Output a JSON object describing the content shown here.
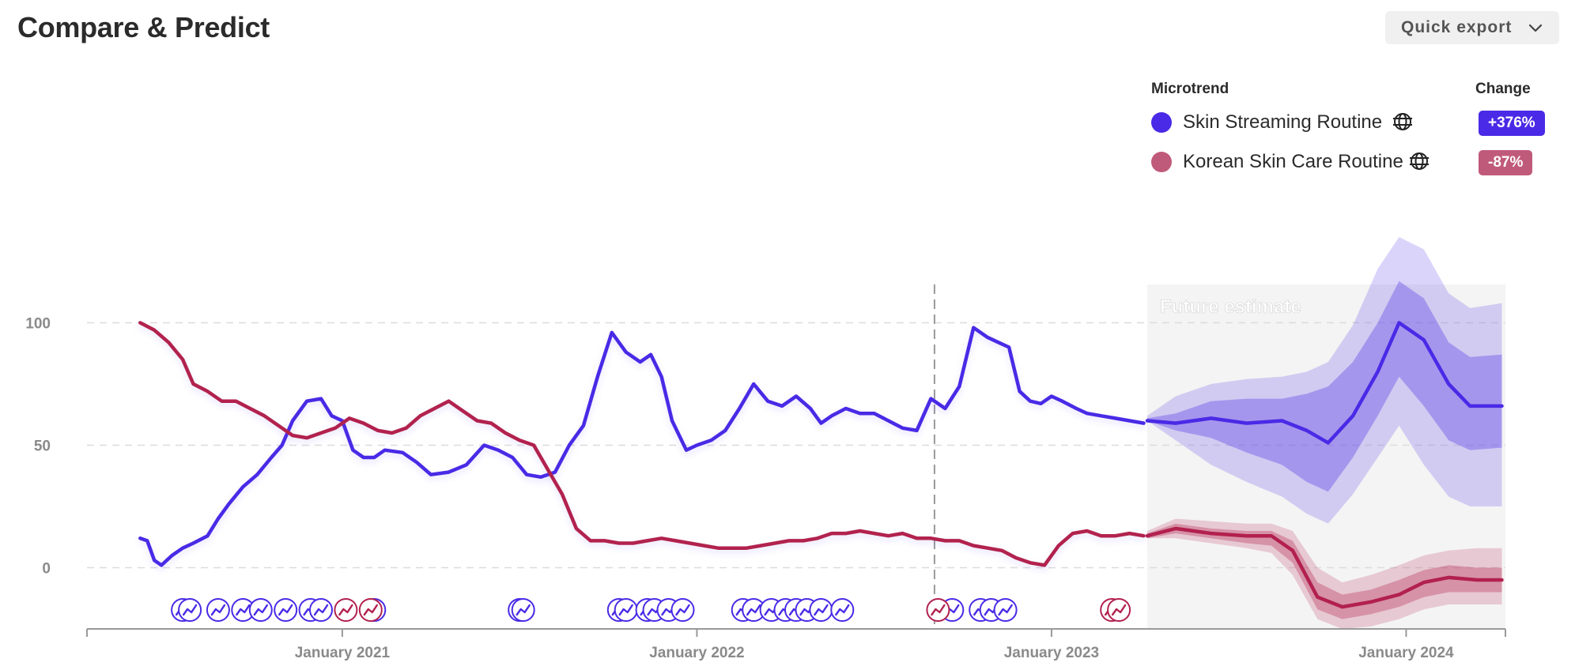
{
  "header": {
    "title": "Compare & Predict",
    "export_label": "Quick export"
  },
  "legend": {
    "col_trend": "Microtrend",
    "col_change": "Change",
    "items": [
      {
        "name": "Skin Streaming Routine",
        "change": "+376%",
        "color": "#4a2ae6"
      },
      {
        "name": "Korean Skin Care Routine",
        "change": "-87%",
        "color": "#c05a7a"
      }
    ]
  },
  "chart_data": {
    "type": "line",
    "title": "",
    "future_label": "Future estimate",
    "x_tick_labels": [
      "January 2021",
      "January 2022",
      "January 2023",
      "January 2024"
    ],
    "x_ticks": [
      2021.0,
      2022.0,
      2023.0,
      2024.0
    ],
    "xlim": [
      2020.28,
      2024.28
    ],
    "y_ticks": [
      0,
      50,
      100
    ],
    "ylim": [
      -25,
      135
    ],
    "grid": true,
    "today_x": 2022.67,
    "forecast_start": 2023.27,
    "series": [
      {
        "name": "Skin Streaming Routine",
        "color": "#4a2ae6",
        "x": [
          2020.43,
          2020.45,
          2020.47,
          2020.49,
          2020.52,
          2020.55,
          2020.58,
          2020.62,
          2020.65,
          2020.68,
          2020.72,
          2020.76,
          2020.8,
          2020.83,
          2020.86,
          2020.9,
          2020.94,
          2020.97,
          2021.0,
          2021.03,
          2021.06,
          2021.09,
          2021.12,
          2021.17,
          2021.21,
          2021.25,
          2021.3,
          2021.35,
          2021.4,
          2021.44,
          2021.48,
          2021.52,
          2021.56,
          2021.6,
          2021.64,
          2021.68,
          2021.72,
          2021.76,
          2021.8,
          2021.84,
          2021.87,
          2021.9,
          2021.93,
          2021.97,
          2022.0,
          2022.04,
          2022.08,
          2022.12,
          2022.16,
          2022.2,
          2022.24,
          2022.28,
          2022.32,
          2022.35,
          2022.38,
          2022.42,
          2022.46,
          2022.5,
          2022.54,
          2022.58,
          2022.62,
          2022.66,
          2022.7,
          2022.74,
          2022.78,
          2022.82,
          2022.85,
          2022.88,
          2022.91,
          2022.94,
          2022.97,
          2023.0,
          2023.03,
          2023.07,
          2023.1,
          2023.14,
          2023.18,
          2023.22,
          2023.26
        ],
        "y": [
          12,
          11,
          3,
          1,
          5,
          8,
          10,
          13,
          20,
          26,
          33,
          38,
          45,
          50,
          60,
          68,
          69,
          62,
          60,
          48,
          45,
          45,
          48,
          47,
          43,
          38,
          39,
          42,
          50,
          48,
          45,
          38,
          37,
          39,
          50,
          58,
          78,
          96,
          88,
          84,
          87,
          78,
          60,
          48,
          50,
          52,
          56,
          65,
          75,
          68,
          66,
          70,
          65,
          59,
          62,
          65,
          63,
          63,
          60,
          57,
          56,
          69,
          65,
          74,
          98,
          94,
          92,
          90,
          72,
          68,
          67,
          70,
          68,
          65,
          63,
          62,
          61,
          60,
          59
        ]
      },
      {
        "name": "Korean Skin Care Routine",
        "color": "#b2204e",
        "x": [
          2020.43,
          2020.47,
          2020.51,
          2020.55,
          2020.58,
          2020.62,
          2020.66,
          2020.7,
          2020.74,
          2020.78,
          2020.82,
          2020.86,
          2020.9,
          2020.94,
          2020.98,
          2021.02,
          2021.06,
          2021.1,
          2021.14,
          2021.18,
          2021.22,
          2021.26,
          2021.3,
          2021.34,
          2021.38,
          2021.42,
          2021.46,
          2021.5,
          2021.54,
          2021.58,
          2021.62,
          2021.66,
          2021.7,
          2021.74,
          2021.78,
          2021.82,
          2021.86,
          2021.9,
          2021.94,
          2021.98,
          2022.02,
          2022.06,
          2022.1,
          2022.14,
          2022.18,
          2022.22,
          2022.26,
          2022.3,
          2022.34,
          2022.38,
          2022.42,
          2022.46,
          2022.5,
          2022.54,
          2022.58,
          2022.62,
          2022.66,
          2022.7,
          2022.74,
          2022.78,
          2022.82,
          2022.86,
          2022.9,
          2022.94,
          2022.98,
          2023.02,
          2023.06,
          2023.1,
          2023.14,
          2023.18,
          2023.22,
          2023.26
        ],
        "y": [
          100,
          97,
          92,
          85,
          75,
          72,
          68,
          68,
          65,
          62,
          58,
          54,
          53,
          55,
          57,
          61,
          59,
          56,
          55,
          57,
          62,
          65,
          68,
          64,
          60,
          59,
          55,
          52,
          50,
          40,
          30,
          16,
          11,
          11,
          10,
          10,
          11,
          12,
          11,
          10,
          9,
          8,
          8,
          8,
          9,
          10,
          11,
          11,
          12,
          14,
          14,
          15,
          14,
          13,
          14,
          12,
          12,
          11,
          11,
          9,
          8,
          7,
          4,
          2,
          1,
          9,
          14,
          15,
          13,
          13,
          14,
          13
        ]
      }
    ],
    "forecast": [
      {
        "name": "Skin Streaming Routine",
        "color": "#4a2ae6",
        "x": [
          2023.27,
          2023.35,
          2023.45,
          2023.55,
          2023.65,
          2023.72,
          2023.78,
          2023.85,
          2023.92,
          2023.98,
          2024.05,
          2024.12,
          2024.18,
          2024.27
        ],
        "y": [
          60,
          59,
          61,
          59,
          60,
          56,
          51,
          62,
          80,
          100,
          93,
          75,
          66,
          66
        ],
        "inner_lo": [
          60,
          56,
          53,
          47,
          42,
          35,
          31,
          45,
          62,
          78,
          66,
          52,
          48,
          49
        ],
        "inner_hi": [
          61,
          63,
          68,
          69,
          69,
          71,
          74,
          84,
          100,
          117,
          110,
          92,
          86,
          87
        ],
        "outer_lo": [
          60,
          52,
          42,
          35,
          29,
          22,
          18,
          30,
          45,
          58,
          42,
          29,
          25,
          25
        ],
        "outer_hi": [
          62,
          70,
          75,
          77,
          78,
          80,
          84,
          99,
          122,
          135,
          130,
          112,
          106,
          108
        ]
      },
      {
        "name": "Korean Skin Care Routine",
        "color": "#b2204e",
        "x": [
          2023.27,
          2023.35,
          2023.45,
          2023.55,
          2023.62,
          2023.68,
          2023.75,
          2023.82,
          2023.9,
          2023.98,
          2024.05,
          2024.12,
          2024.2,
          2024.27
        ],
        "y": [
          13,
          16,
          14,
          13,
          13,
          7,
          -12,
          -16,
          -14,
          -11,
          -6,
          -4,
          -5,
          -5
        ],
        "inner_lo": [
          12,
          14,
          12,
          10,
          9,
          2,
          -17,
          -21,
          -19,
          -16,
          -12,
          -10,
          -10,
          -10
        ],
        "inner_hi": [
          14,
          18,
          16,
          15,
          15,
          11,
          -6,
          -11,
          -9,
          -5,
          -1,
          1,
          0,
          0
        ],
        "outer_lo": [
          12,
          12,
          10,
          8,
          6,
          -3,
          -21,
          -25,
          -24,
          -21,
          -17,
          -15,
          -15,
          -15
        ],
        "outer_hi": [
          15,
          20,
          19,
          18,
          18,
          15,
          0,
          -6,
          -3,
          1,
          5,
          7,
          8,
          8
        ]
      }
    ],
    "markers": [
      {
        "series": 0,
        "x": [
          2020.55,
          2020.57,
          2020.65,
          2020.72,
          2020.77,
          2020.84,
          2020.91,
          2020.94,
          2021.09,
          2021.5,
          2021.51,
          2021.78,
          2021.8,
          2021.86,
          2021.88,
          2021.92,
          2021.96,
          2022.13,
          2022.16,
          2022.21,
          2022.25,
          2022.28,
          2022.31,
          2022.35,
          2022.41,
          2022.72,
          2022.8,
          2022.83,
          2022.87
        ]
      },
      {
        "series": 1,
        "x": [
          2021.01,
          2021.08,
          2022.68,
          2023.17,
          2023.19
        ]
      }
    ]
  }
}
